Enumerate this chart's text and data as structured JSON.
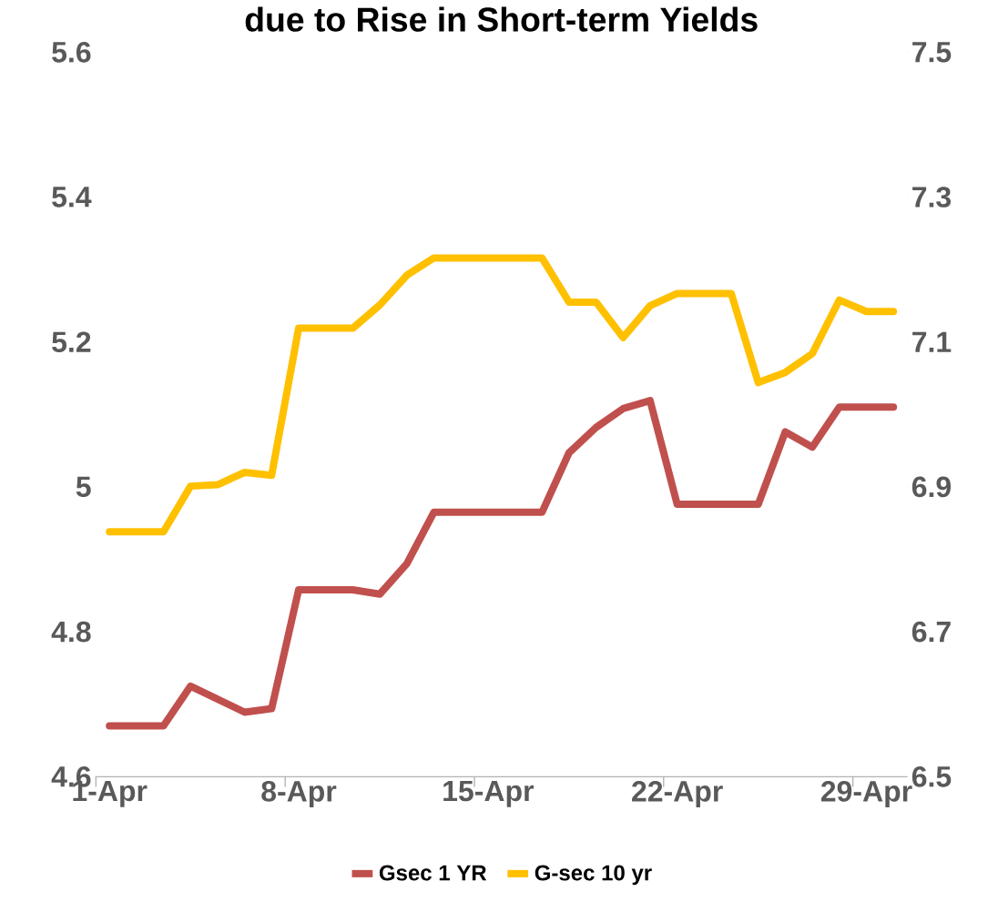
{
  "chart_data": {
    "type": "line",
    "title": "due to Rise in Short-term Yields",
    "categories": [
      "1-Apr",
      null,
      null,
      null,
      null,
      null,
      null,
      "8-Apr",
      null,
      null,
      null,
      null,
      null,
      null,
      "15-Apr",
      null,
      null,
      null,
      null,
      null,
      null,
      "22-Apr",
      null,
      null,
      null,
      null,
      null,
      null,
      "29-Apr",
      null
    ],
    "series": [
      {
        "name": "Gsec 1 YR",
        "color": "#c0504d",
        "values": [
          4.67,
          4.67,
          4.67,
          4.725,
          4.707,
          4.689,
          4.694,
          4.858,
          4.858,
          4.858,
          4.852,
          4.894,
          4.965,
          4.965,
          4.965,
          4.965,
          4.965,
          5.047,
          5.082,
          5.108,
          5.119,
          4.976,
          4.976,
          4.976,
          4.976,
          5.076,
          5.055,
          5.11,
          5.11,
          5.11
        ]
      },
      {
        "name": "G-sec 10 yr",
        "color": "#ffc000",
        "axis": "y2",
        "values": [
          6.838,
          6.838,
          6.838,
          6.901,
          6.903,
          6.92,
          6.916,
          7.119,
          7.119,
          7.119,
          7.151,
          7.192,
          7.216,
          7.216,
          7.216,
          7.216,
          7.216,
          7.155,
          7.155,
          7.106,
          7.15,
          7.167,
          7.167,
          7.167,
          7.044,
          7.058,
          7.084,
          7.158,
          7.142,
          7.142
        ]
      }
    ],
    "ylim": [
      4.6,
      5.6
    ],
    "yticks": [
      4.6,
      4.8,
      5,
      5.2,
      5.4,
      5.6
    ],
    "y2lim": [
      6.5,
      7.5
    ],
    "y2ticks": [
      6.5,
      6.7,
      6.9,
      7.1,
      7.3,
      7.5
    ],
    "grid": false,
    "legend": "bottom",
    "marker": "none",
    "line_style": "solid"
  }
}
